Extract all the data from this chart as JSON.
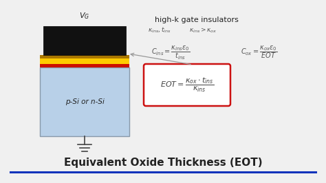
{
  "title": "Equivalent Oxide Thickness (EOT)",
  "title_fontsize": 11,
  "title_color": "#222222",
  "bg_color": "#f0f0f0",
  "blue_line_color": "#1133bb",
  "header": "high-k gate insulators",
  "vg_label": "$V_G$",
  "si_label": "p-Si or n-Si",
  "si_color": "#b8d0e8",
  "si_border_color": "#8899aa",
  "gate_color": "#111111",
  "red_layer_color": "#cc1100",
  "yellow_layer_color": "#ffcc00",
  "brown_layer_color": "#aa7700",
  "arrow_color": "#999999",
  "text_dark": "#222222",
  "text_mid": "#444444",
  "text_light": "#666666",
  "eot_border_color": "#cc1111",
  "eot_bg_color": "#ffffff",
  "formula_color": "#555555"
}
